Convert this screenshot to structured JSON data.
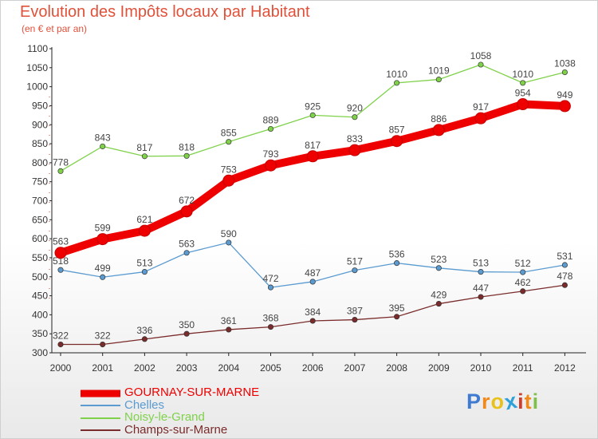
{
  "title": "Evolution des Impôts locaux par Habitant",
  "subtitle": "(en € et par an)",
  "brand": [
    "P",
    "r",
    "o",
    "x",
    "i",
    "t",
    "i"
  ],
  "brand_colors": [
    "#3f7bd0",
    "#f08a1c",
    "#e8c21b",
    "#2fa0d8",
    "#d23a2a",
    "#f08a1c",
    "#7fc04a"
  ],
  "chart_data": {
    "type": "line",
    "title": "Evolution des Impôts locaux par Habitant",
    "subtitle": "(en € et par an)",
    "xlabel": "",
    "ylabel": "",
    "x": [
      "2000",
      "2001",
      "2002",
      "2003",
      "2004",
      "2005",
      "2006",
      "2007",
      "2008",
      "2009",
      "2010",
      "2011",
      "2012"
    ],
    "ylim": [
      300,
      1100
    ],
    "yticks": [
      300,
      350,
      400,
      450,
      500,
      550,
      600,
      650,
      700,
      750,
      800,
      850,
      900,
      950,
      1000,
      1050,
      1100
    ],
    "grid": false,
    "legend_position": "bottom-left",
    "series": [
      {
        "name": "GOURNAY-SUR-MARNE",
        "color": "#ee0000",
        "emphasis": true,
        "values": [
          563,
          599,
          621,
          672,
          753,
          793,
          817,
          833,
          857,
          886,
          917,
          954,
          949
        ]
      },
      {
        "name": "Chelles",
        "color": "#5b9bd0",
        "emphasis": false,
        "values": [
          518,
          499,
          513,
          563,
          590,
          472,
          487,
          517,
          536,
          523,
          513,
          512,
          531
        ]
      },
      {
        "name": "Noisy-le-Grand",
        "color": "#7fd14a",
        "emphasis": false,
        "values": [
          778,
          843,
          817,
          818,
          855,
          889,
          925,
          920,
          1010,
          1019,
          1058,
          1010,
          1038
        ]
      },
      {
        "name": "Champs-sur-Marne",
        "color": "#7a2b2b",
        "emphasis": false,
        "values": [
          322,
          322,
          336,
          350,
          361,
          368,
          384,
          387,
          395,
          429,
          447,
          462,
          478
        ]
      }
    ]
  }
}
